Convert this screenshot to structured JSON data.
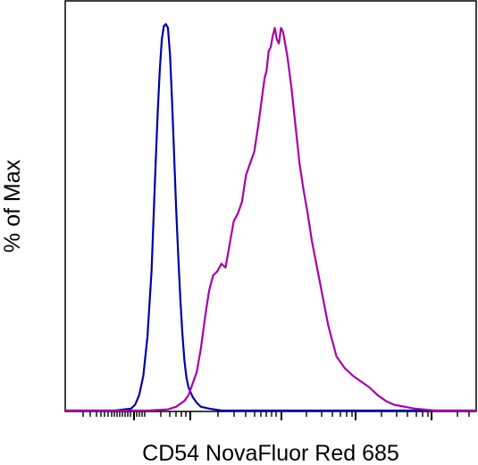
{
  "chart_data": {
    "type": "line",
    "title": "",
    "xlabel": "CD54 NovaFluor Red 685",
    "ylabel": "% of Max",
    "xscale": "log",
    "xlim": [
      0.0,
      1.0
    ],
    "ylim": [
      0,
      100
    ],
    "grid": false,
    "legend": "none",
    "tick_labels_shown": false,
    "series": [
      {
        "color": "#0000a8",
        "x": [
          0.0,
          0.08,
          0.12,
          0.16,
          0.17,
          0.18,
          0.19,
          0.2,
          0.21,
          0.215,
          0.22,
          0.225,
          0.23,
          0.235,
          0.24,
          0.245,
          0.25,
          0.255,
          0.26,
          0.265,
          0.27,
          0.275,
          0.28,
          0.285,
          0.29,
          0.295,
          0.3,
          0.31,
          0.32,
          0.33,
          0.35,
          0.38,
          0.45,
          0.6,
          0.8,
          1.0
        ],
        "y": [
          0,
          0,
          0,
          0.5,
          1.5,
          4,
          9,
          19,
          36,
          50,
          64,
          77,
          88,
          96,
          99.5,
          100,
          99,
          92,
          80,
          66,
          52,
          40,
          29,
          20,
          13,
          8.5,
          6,
          3.5,
          2,
          1,
          0.5,
          0,
          0,
          0,
          0,
          0
        ]
      },
      {
        "color": "#a800a8",
        "x": [
          0.0,
          0.1,
          0.2,
          0.25,
          0.27,
          0.29,
          0.3,
          0.31,
          0.32,
          0.33,
          0.34,
          0.35,
          0.36,
          0.37,
          0.38,
          0.39,
          0.4,
          0.41,
          0.42,
          0.43,
          0.44,
          0.45,
          0.46,
          0.47,
          0.48,
          0.485,
          0.49,
          0.495,
          0.5,
          0.505,
          0.51,
          0.515,
          0.52,
          0.525,
          0.53,
          0.54,
          0.55,
          0.56,
          0.57,
          0.58,
          0.59,
          0.6,
          0.62,
          0.64,
          0.66,
          0.68,
          0.7,
          0.72,
          0.74,
          0.76,
          0.78,
          0.8,
          0.85,
          0.9,
          1.0
        ],
        "y": [
          0,
          0,
          0,
          0.3,
          1,
          2.5,
          4,
          7,
          10,
          16,
          24,
          31,
          35,
          36,
          38,
          37,
          43,
          49,
          51,
          54,
          61,
          64,
          67,
          74,
          82,
          86,
          88,
          93,
          94,
          97,
          99,
          96,
          95,
          99,
          98,
          92,
          84,
          74,
          64,
          57,
          51,
          44,
          33,
          22,
          14,
          11,
          9,
          7.5,
          6,
          4,
          2.5,
          1.5,
          0.5,
          0,
          0
        ]
      }
    ]
  }
}
